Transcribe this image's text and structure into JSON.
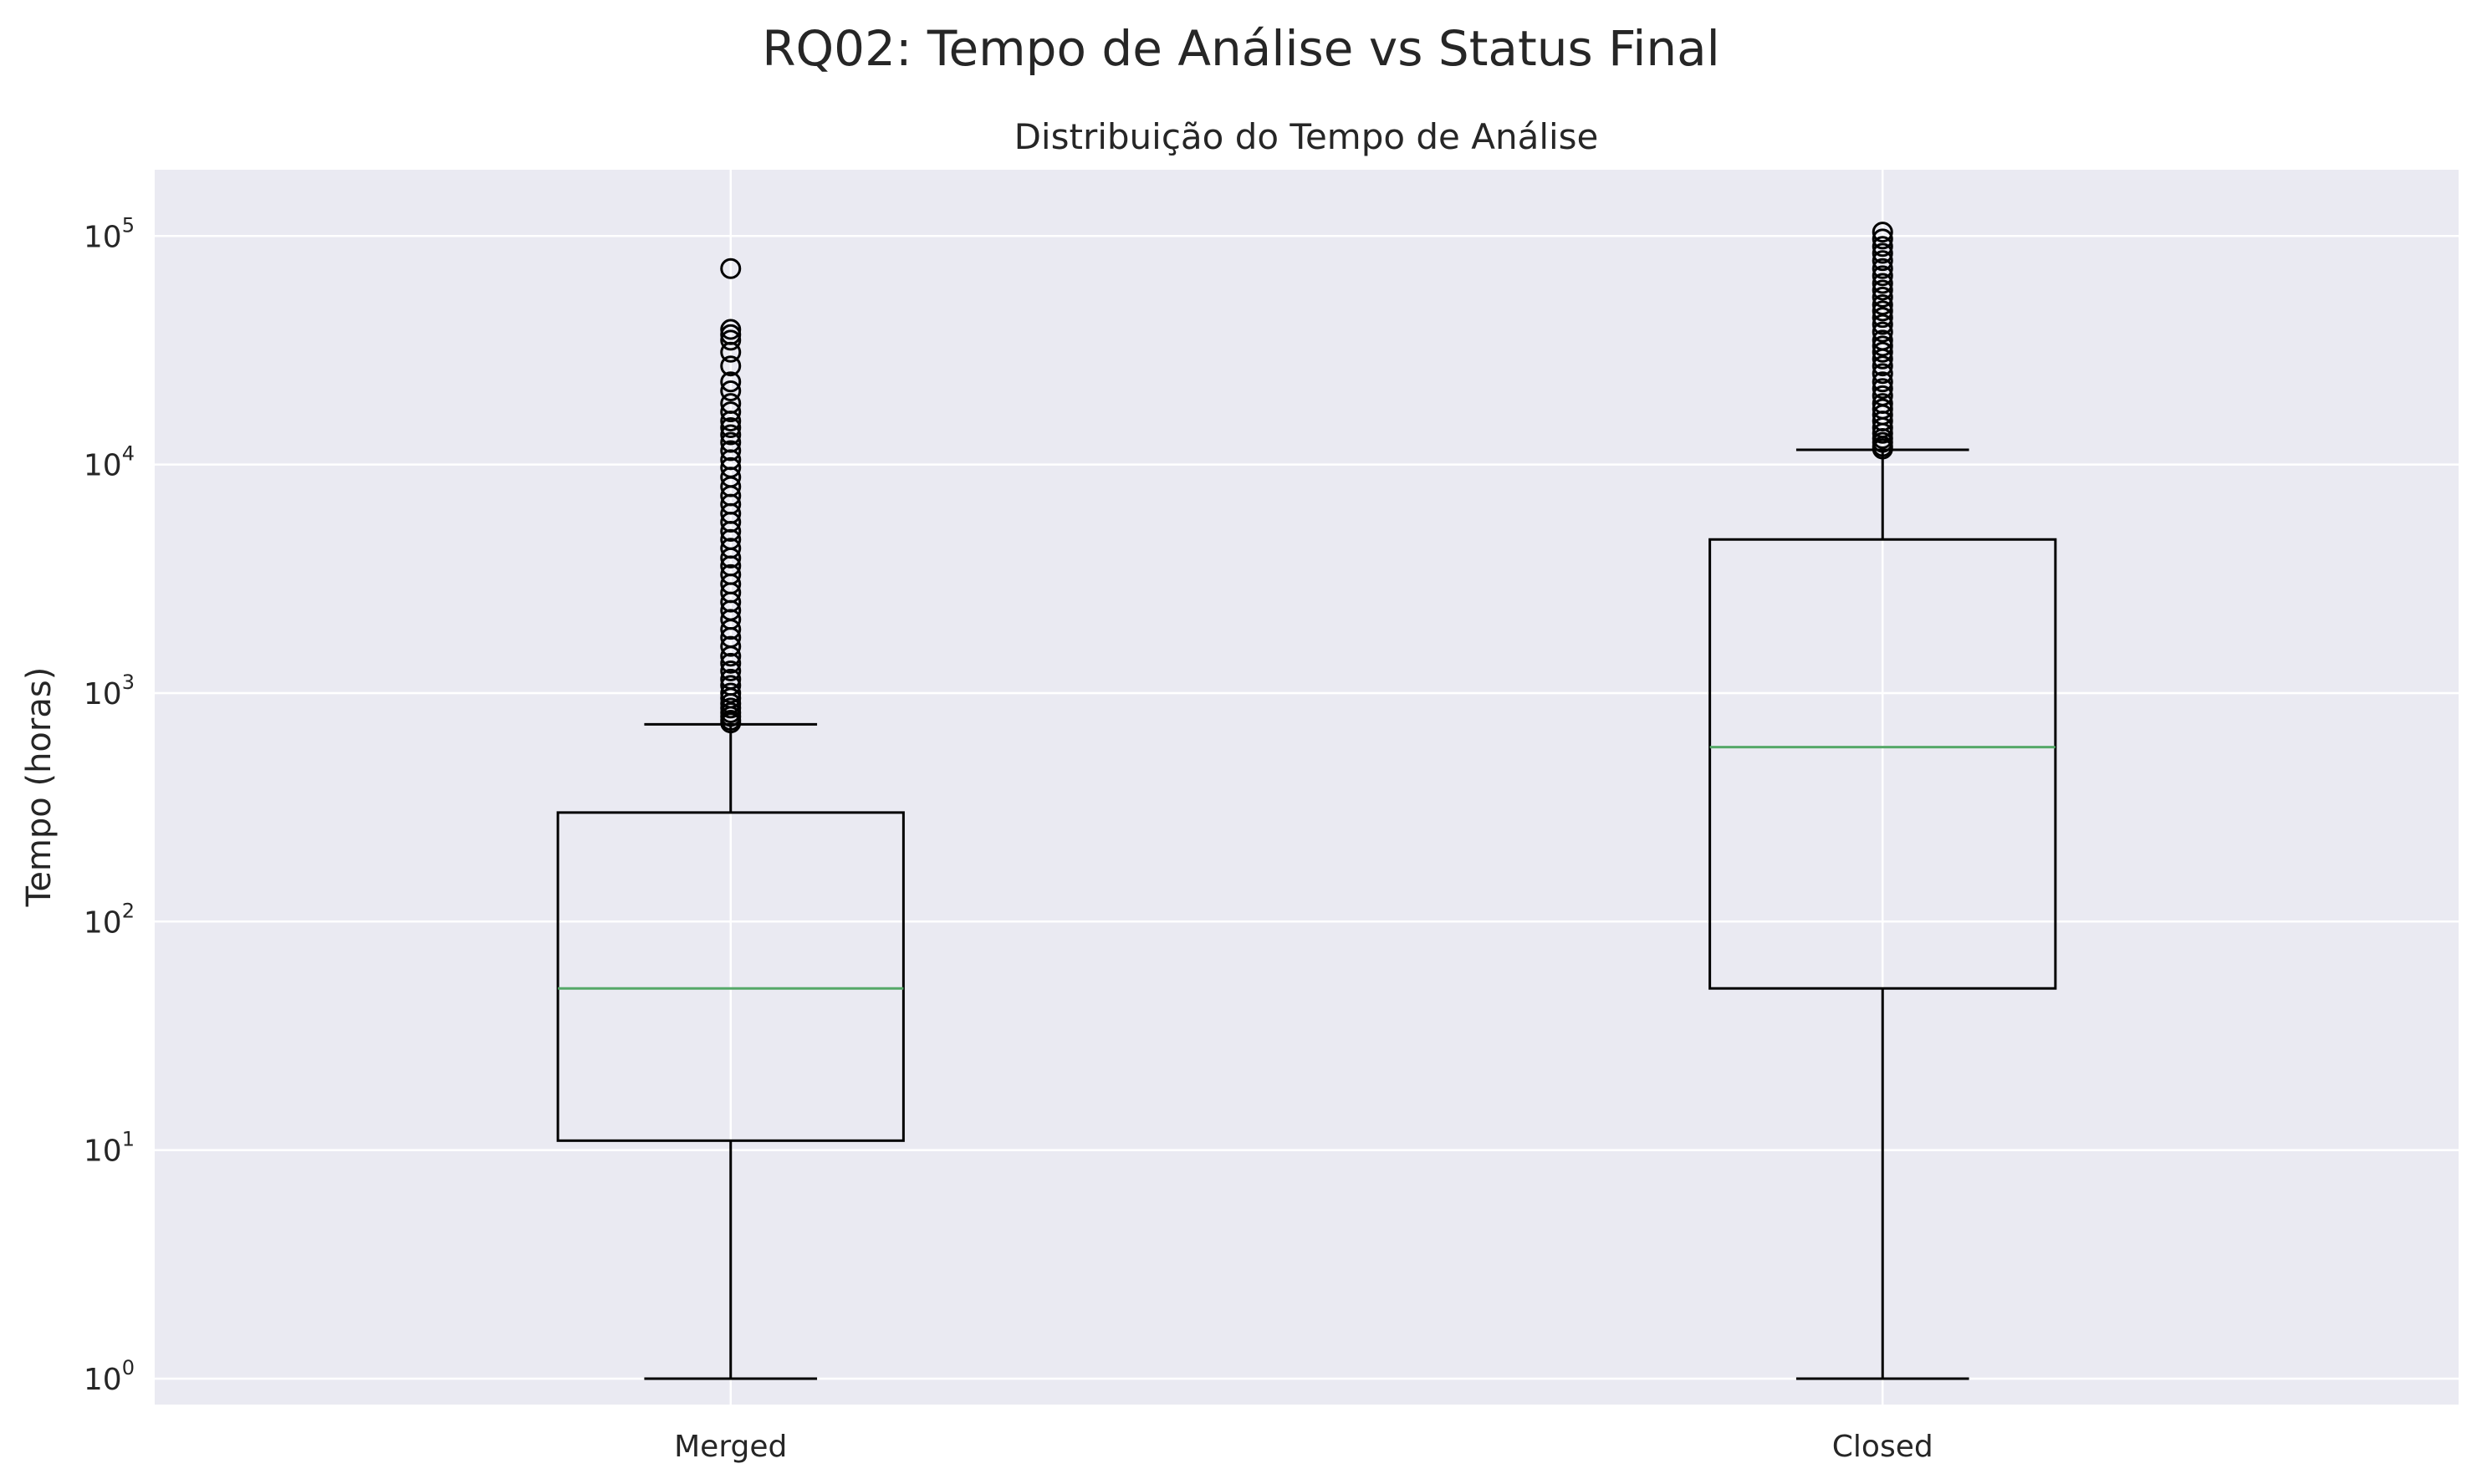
{
  "figure": {
    "suptitle": "RQ02: Tempo de Análise vs Status Final"
  },
  "chart_data": {
    "type": "box",
    "title": "Distribuição do Tempo de Análise",
    "xlabel": "",
    "ylabel": "Tempo (horas)",
    "yscale": "log",
    "ylim": [
      0.77,
      195000
    ],
    "y_ticks": [
      {
        "value": 1,
        "base": "10",
        "exp": "0"
      },
      {
        "value": 10,
        "base": "10",
        "exp": "1"
      },
      {
        "value": 100,
        "base": "10",
        "exp": "2"
      },
      {
        "value": 1000,
        "base": "10",
        "exp": "3"
      },
      {
        "value": 10000,
        "base": "10",
        "exp": "4"
      },
      {
        "value": 100000,
        "base": "10",
        "exp": "5"
      }
    ],
    "grid": true,
    "categories": [
      "Merged",
      "Closed"
    ],
    "boxes": [
      {
        "category": "Merged",
        "whisker_low": 1,
        "q1": 11,
        "median": 51,
        "q3": 300,
        "whisker_high": 730,
        "outliers": [
          740,
          760,
          790,
          820,
          860,
          900,
          950,
          1000,
          1080,
          1150,
          1250,
          1350,
          1450,
          1600,
          1750,
          1900,
          2100,
          2300,
          2500,
          2750,
          3000,
          3300,
          3600,
          3900,
          4300,
          4700,
          5100,
          5600,
          6100,
          6700,
          7300,
          8000,
          8800,
          9700,
          10500,
          11500,
          12500,
          13500,
          14500,
          15500,
          17000,
          18500,
          21000,
          23000,
          27000,
          31000,
          35000,
          37000,
          39000,
          72000
        ]
      },
      {
        "category": "Closed",
        "whisker_low": 1,
        "q1": 51,
        "median": 580,
        "q3": 4700,
        "whisker_high": 11600,
        "outliers": [
          11700,
          12000,
          12500,
          13000,
          13700,
          14500,
          15500,
          16500,
          17500,
          18500,
          20000,
          21500,
          23000,
          25000,
          27000,
          29000,
          31000,
          33000,
          35000,
          38000,
          41000,
          44000,
          47000,
          50000,
          54000,
          58000,
          62000,
          67000,
          72000,
          78000,
          84000,
          90000,
          97000,
          104000
        ]
      }
    ],
    "colors": {
      "axes_bg": "#eaeaf2",
      "grid": "#ffffff",
      "box": "#000000",
      "median": "#55a868"
    }
  }
}
